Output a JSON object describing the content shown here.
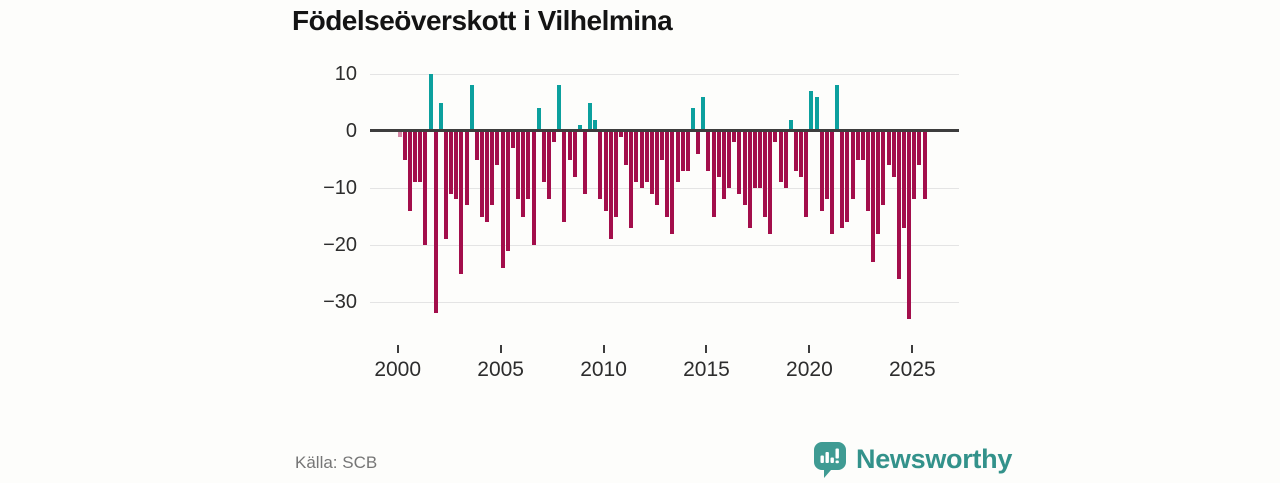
{
  "header": {
    "title": "Födelseöverskott i Vilhelmina"
  },
  "footer": {
    "source": "Källa: SCB",
    "brand": "Newsworthy",
    "brand_icon": "speech-bubble-bar-chart-icon"
  },
  "colors": {
    "positive_bar": "#0ca09e",
    "negative_bar": "#a30e4b",
    "first_bar_light": "#d689a6",
    "zero_line": "#3d3d3d",
    "gridline": "#e4e4e4",
    "axis_text": "#2d2d2d",
    "source_text": "#767676",
    "brand_teal": "#33928b",
    "background": "#fdfdfb"
  },
  "chart_data": {
    "type": "bar",
    "title": "Födelseöverskott i Vilhelmina",
    "xlabel": "",
    "ylabel": "",
    "frequency": "quarterly",
    "start_period": "2000-Q1",
    "end_period": "2025-Q3",
    "ylim": [
      -35,
      12
    ],
    "yticks": [
      10,
      0,
      -10,
      -20,
      -30
    ],
    "ytick_labels": [
      "10",
      "0",
      "−10",
      "−20",
      "−30"
    ],
    "xticks": [
      2000,
      2005,
      2010,
      2015,
      2020,
      2025
    ],
    "grid": "horizontal-only",
    "legend": "none",
    "values": [
      -1,
      -5,
      -14,
      -9,
      -9,
      -20,
      10,
      -32,
      5,
      -19,
      -11,
      -12,
      -25,
      -13,
      8,
      -5,
      -15,
      -16,
      -13,
      -6,
      -24,
      -21,
      -3,
      -12,
      -15,
      -12,
      -20,
      4,
      -9,
      -12,
      -2,
      8,
      -16,
      -5,
      -8,
      1,
      -11,
      5,
      2,
      -12,
      -14,
      -19,
      -15,
      -1,
      -6,
      -17,
      -9,
      -10,
      -9,
      -11,
      -13,
      -5,
      -15,
      -18,
      -9,
      -7,
      -7,
      4,
      -4,
      6,
      -7,
      -15,
      -8,
      -12,
      -10,
      -2,
      -11,
      -13,
      -17,
      -10,
      -10,
      -15,
      -18,
      -2,
      -9,
      -10,
      2,
      -7,
      -8,
      -15,
      7,
      6,
      -14,
      -12,
      -18,
      8,
      -17,
      -16,
      -12,
      -5,
      -5,
      -14,
      -23,
      -18,
      -13,
      -6,
      -8,
      -26,
      -17,
      -33,
      -12,
      -6,
      -12
    ]
  }
}
